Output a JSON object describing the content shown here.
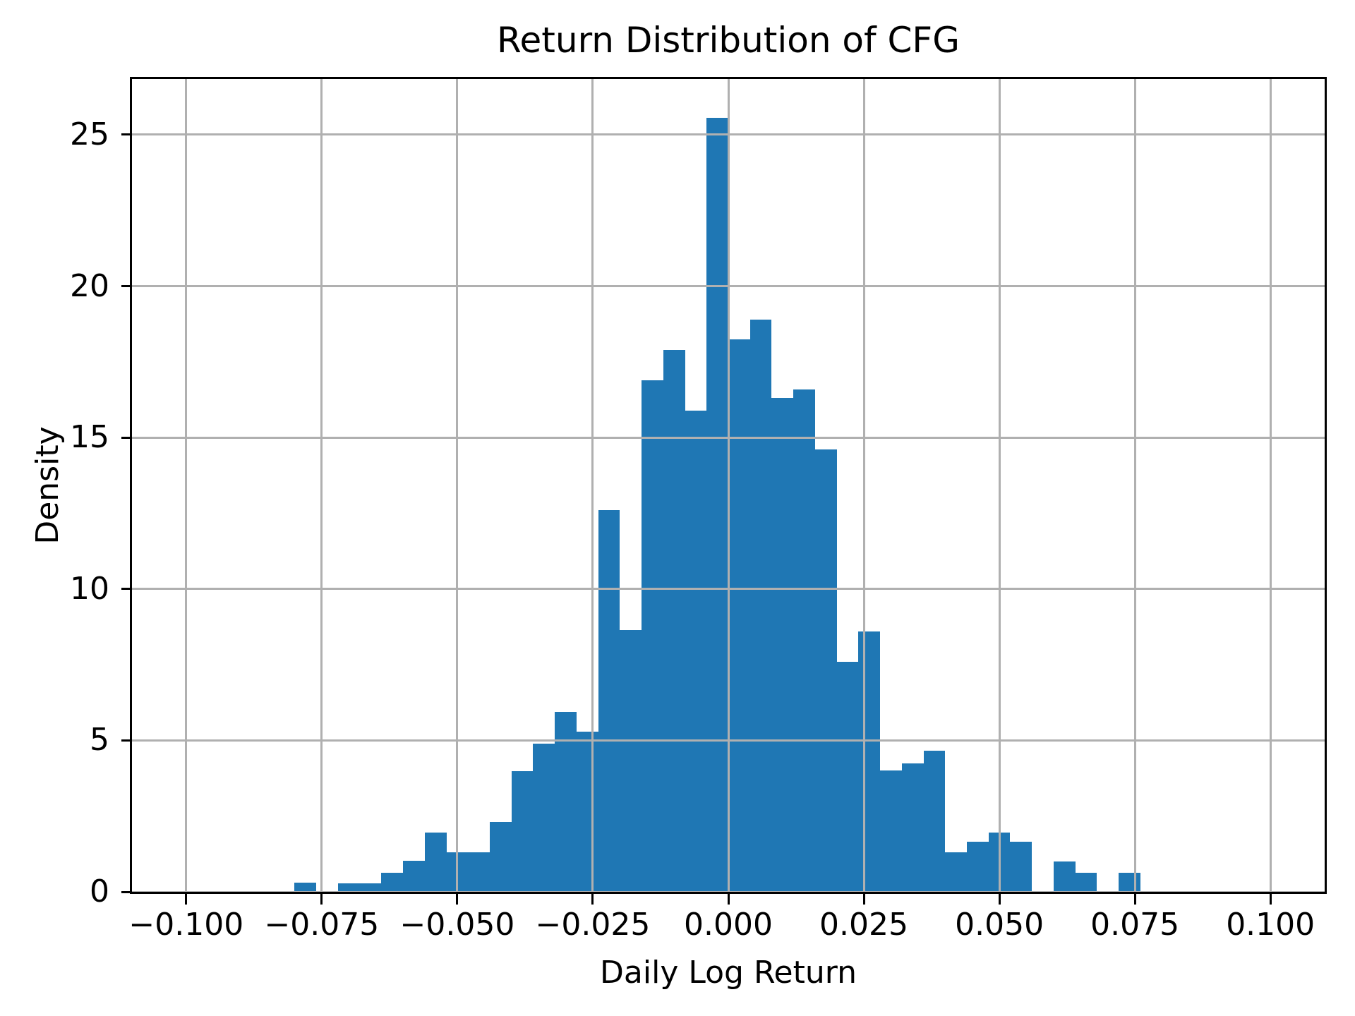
{
  "figure": {
    "title": "Return Distribution of CFG",
    "xlabel": "Daily Log Return",
    "ylabel": "Density"
  },
  "colors": {
    "bar": "#1f77b4",
    "grid": "#b0b0b0",
    "spine": "#000000",
    "background": "#ffffff",
    "text": "#000000"
  },
  "chart_data": {
    "type": "bar",
    "subtype": "histogram",
    "title": "Return Distribution of CFG",
    "xlabel": "Daily Log Return",
    "ylabel": "Density",
    "bin_start": -0.08,
    "bin_width": 0.004,
    "densities": [
      0.3,
      0,
      0.27,
      0.27,
      0.63,
      1.03,
      1.96,
      1.3,
      1.3,
      2.3,
      3.98,
      4.9,
      5.95,
      5.3,
      12.6,
      8.65,
      16.9,
      17.9,
      15.9,
      25.55,
      18.25,
      18.9,
      16.3,
      16.6,
      14.6,
      7.6,
      8.6,
      4.0,
      4.25,
      4.65,
      1.3,
      1.65,
      1.95,
      1.65,
      0,
      1.0,
      0.63,
      0,
      0.63
    ],
    "peak_density": 25.55,
    "xlim": [
      -0.11,
      0.11
    ],
    "ylim": [
      0,
      26.84
    ],
    "xticks": [
      -0.1,
      -0.075,
      -0.05,
      -0.025,
      0,
      0.025,
      0.05,
      0.075,
      0.1
    ],
    "xtick_labels": [
      "−0.100",
      "−0.075",
      "−0.050",
      "−0.025",
      "0.000",
      "0.025",
      "0.050",
      "0.075",
      "0.100"
    ],
    "yticks": [
      0,
      5,
      10,
      15,
      20,
      25
    ],
    "ytick_labels": [
      "0",
      "5",
      "10",
      "15",
      "20",
      "25"
    ],
    "grid": true,
    "grid_above_bars": true,
    "legend": null
  }
}
